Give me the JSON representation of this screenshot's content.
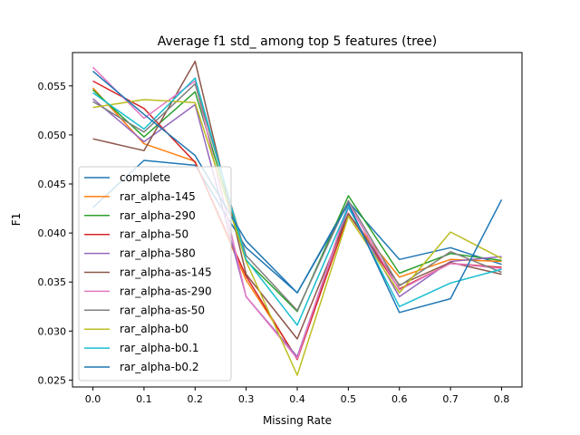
{
  "chart_data": {
    "type": "line",
    "title": "Average f1 std_ among top 5 features (tree)",
    "xlabel": "Missing Rate",
    "ylabel": "F1",
    "x": [
      0.0,
      0.1,
      0.2,
      0.3,
      0.4,
      0.5,
      0.6,
      0.7,
      0.8
    ],
    "xlim": [
      -0.04,
      0.84
    ],
    "ylim": [
      0.0243,
      0.0584
    ],
    "xticks": [
      0.0,
      0.1,
      0.2,
      0.3,
      0.4,
      0.5,
      0.6,
      0.7,
      0.8
    ],
    "xtick_labels": [
      "0.0",
      "0.1",
      "0.2",
      "0.3",
      "0.4",
      "0.5",
      "0.6",
      "0.7",
      "0.8"
    ],
    "yticks": [
      0.025,
      0.03,
      0.035,
      0.04,
      0.045,
      0.05,
      0.055
    ],
    "ytick_labels": [
      "0.025",
      "0.030",
      "0.035",
      "0.040",
      "0.045",
      "0.050",
      "0.055"
    ],
    "grid": false,
    "legend_position": "center-left",
    "series": [
      {
        "name": "complete",
        "color": "#1f77b4",
        "values": [
          0.0426,
          0.0474,
          0.0469,
          0.0385,
          0.0339,
          0.0432,
          0.0373,
          0.0385,
          0.0368
        ]
      },
      {
        "name": "rar_alpha-145",
        "color": "#ff7f0e",
        "values": [
          0.0548,
          0.0491,
          0.0473,
          0.0352,
          0.0272,
          0.0419,
          0.0355,
          0.0373,
          0.0371
        ]
      },
      {
        "name": "rar_alpha-290",
        "color": "#2ca02c",
        "values": [
          0.0546,
          0.0498,
          0.0544,
          0.0372,
          0.032,
          0.0438,
          0.0359,
          0.0379,
          0.0372
        ]
      },
      {
        "name": "rar_alpha-50",
        "color": "#d62728",
        "values": [
          0.0555,
          0.0527,
          0.0472,
          0.0356,
          0.0271,
          0.042,
          0.0343,
          0.0369,
          0.0365
        ]
      },
      {
        "name": "rar_alpha-580",
        "color": "#9467bd",
        "values": [
          0.0537,
          0.0493,
          0.0531,
          0.0335,
          0.0274,
          0.0426,
          0.0335,
          0.0371,
          0.0376
        ]
      },
      {
        "name": "rar_alpha-as-145",
        "color": "#8c564b",
        "values": [
          0.0496,
          0.0484,
          0.0575,
          0.0358,
          0.0292,
          0.042,
          0.0347,
          0.037,
          0.0358
        ]
      },
      {
        "name": "rar_alpha-as-290",
        "color": "#e377c2",
        "values": [
          0.0569,
          0.0517,
          0.0555,
          0.0335,
          0.0272,
          0.043,
          0.0342,
          0.0369,
          0.0364
        ]
      },
      {
        "name": "rar_alpha-as-50",
        "color": "#7f7f7f",
        "values": [
          0.0534,
          0.0503,
          0.0552,
          0.0377,
          0.0321,
          0.0433,
          0.0346,
          0.0381,
          0.036
        ]
      },
      {
        "name": "rar_alpha-b0",
        "color": "#bcbd22",
        "values": [
          0.0528,
          0.0536,
          0.0533,
          0.0371,
          0.0255,
          0.0417,
          0.0339,
          0.0401,
          0.0374
        ]
      },
      {
        "name": "rar_alpha-b0.1",
        "color": "#17becf",
        "values": [
          0.0543,
          0.0506,
          0.0558,
          0.0373,
          0.0306,
          0.0427,
          0.0325,
          0.0349,
          0.0363
        ]
      },
      {
        "name": "rar_alpha-b0.2",
        "color": "#1f77b4",
        "values": [
          0.0565,
          0.0521,
          0.0479,
          0.0392,
          0.0339,
          0.043,
          0.0319,
          0.0333,
          0.0434
        ]
      }
    ]
  }
}
